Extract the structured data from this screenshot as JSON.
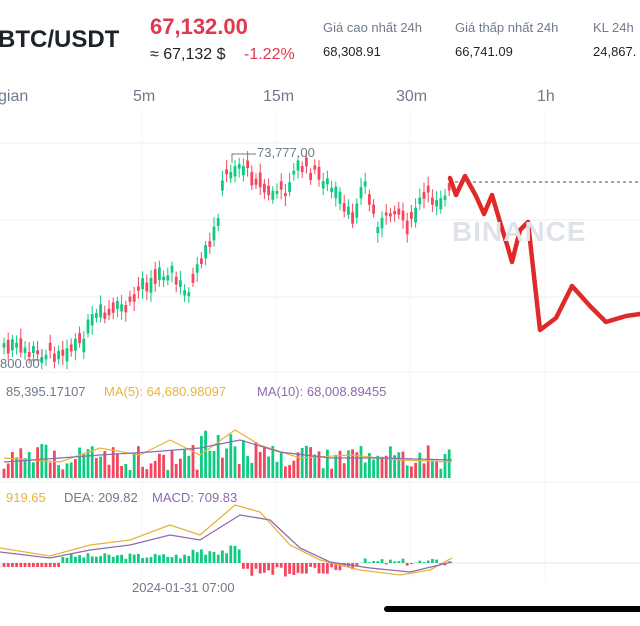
{
  "header": {
    "pair": "BTC/USDT",
    "last_price": "67,132.00",
    "price_converted": "≈ 67,132 $",
    "change_percent": "-1.22%",
    "stats": [
      {
        "label": "Giá cao nhất 24h",
        "value": "68,308.91"
      },
      {
        "label": "Giá thấp nhất 24h",
        "value": "66,741.09"
      },
      {
        "label": "KL 24h",
        "value": "24,867."
      }
    ]
  },
  "timeframes": [
    "gian",
    "5m",
    "15m",
    "30m",
    "1h"
  ],
  "chart": {
    "high_marker": "73,777.00",
    "low_marker": "800.00",
    "watermark": "BINANCE"
  },
  "volume_indicator": {
    "vol_value": "85,395.17107",
    "ma5": "MA(5): 64,680.98097",
    "ma10": "MA(10): 68,008.89455"
  },
  "macd_indicator": {
    "dif": "919.65",
    "dea": "DEA: 209.82",
    "macd": "MACD: 709.83"
  },
  "time_axis": {
    "date": "2024-01-31 07:00"
  },
  "colors": {
    "up": "#0ecb81",
    "down": "#f6465d",
    "ma5": "#e9b43c",
    "ma10": "#8c6bb1",
    "drawing": "#e02a2a"
  }
}
